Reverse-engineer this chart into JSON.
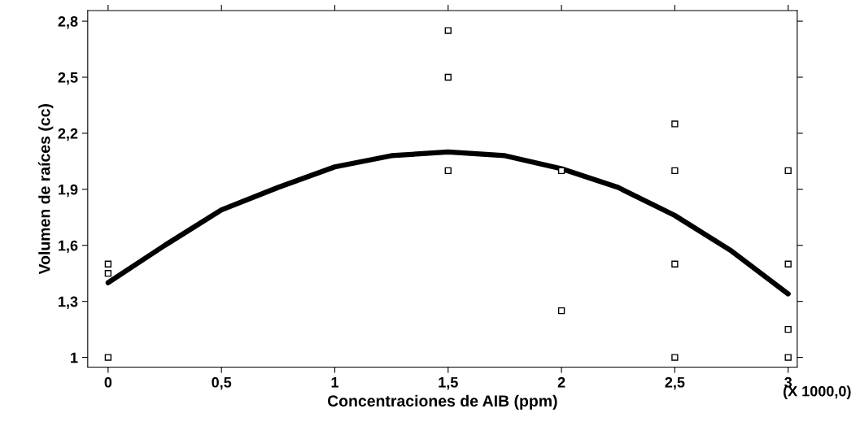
{
  "chart_data": {
    "type": "scatter",
    "xlabel": "Concentraciones de AIB (ppm)",
    "ylabel": "Volumen de raíces (cc)",
    "xlim": [
      -0.09,
      3.04
    ],
    "ylim": [
      0.948,
      2.857
    ],
    "xticks": [
      0,
      {
        "value": 0.5,
        "label": "0,5"
      },
      1,
      {
        "value": 1.5,
        "label": "1,5"
      },
      2,
      {
        "value": 2.5,
        "label": "2,5"
      },
      3
    ],
    "yticks": [
      1,
      {
        "value": 1.3,
        "label": "1,3"
      },
      {
        "value": 1.6,
        "label": "1,6"
      },
      {
        "value": 1.9,
        "label": "1,9"
      },
      {
        "value": 2.2,
        "label": "2,2"
      },
      {
        "value": 2.5,
        "label": "2,5"
      },
      {
        "value": 2.8,
        "label": "2,8"
      }
    ],
    "grid": false,
    "legend": false,
    "annotations": [
      "(X 1000,0)"
    ],
    "series": [
      {
        "type": "scatter",
        "marker": "square",
        "color": "#000000",
        "x": [
          0,
          0,
          0,
          1.5,
          1.5,
          1.5,
          2,
          2,
          2.5,
          2.5,
          2.5,
          2.5,
          3,
          3,
          3,
          3
        ],
        "values": [
          1.5,
          1.45,
          1.0,
          2.75,
          2.5,
          2.0,
          2.0,
          1.25,
          2.25,
          2.0,
          1.5,
          1.0,
          2.0,
          1.5,
          1.15,
          1.0
        ]
      },
      {
        "type": "line",
        "marker": "none",
        "line_style": "solid",
        "color": "#000000",
        "x": [
          0,
          0.25,
          0.5,
          0.75,
          1,
          1.25,
          1.5,
          1.75,
          2,
          2.25,
          2.5,
          2.75,
          3
        ],
        "values": [
          1.4,
          1.6,
          1.79,
          1.91,
          2.02,
          2.08,
          2.1,
          2.08,
          2.01,
          1.91,
          1.76,
          1.57,
          1.34
        ]
      }
    ]
  }
}
